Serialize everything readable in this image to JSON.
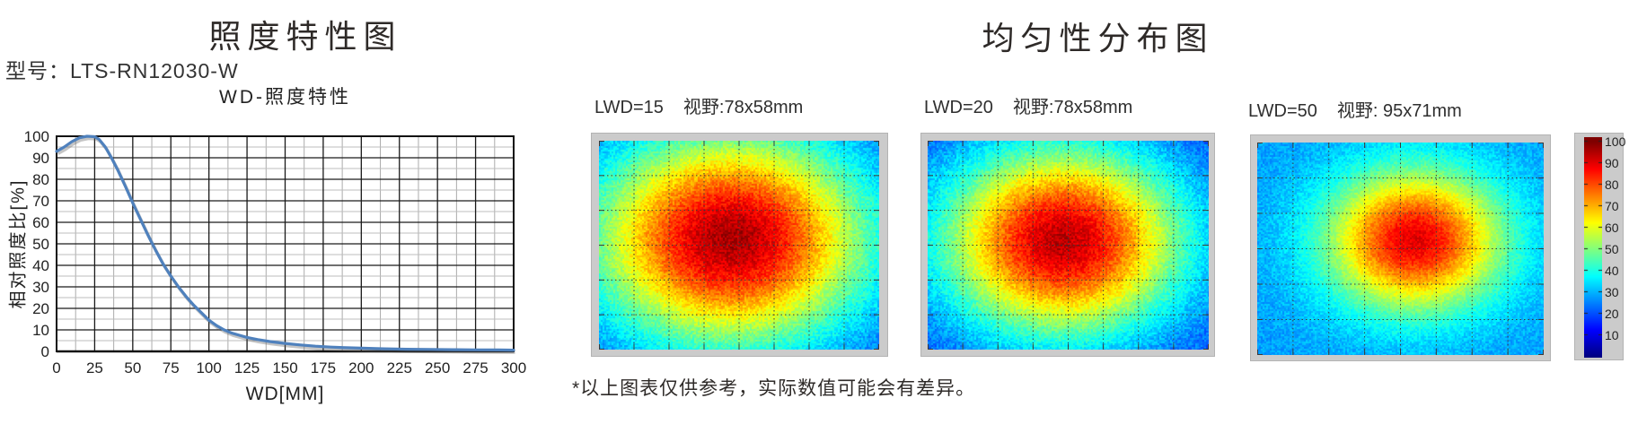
{
  "left": {
    "title": "照度特性图",
    "model": "型号：LTS-RN12030-W"
  },
  "right": {
    "title": "均匀性分布图",
    "footnote": "*以上图表仅供参考，实际数值可能会有差异。"
  },
  "chart_data": [
    {
      "type": "line",
      "title": "WD-照度特性",
      "xlabel": "WD[MM]",
      "ylabel": "相对照度比[%]",
      "xlim": [
        0,
        300
      ],
      "ylim": [
        0,
        100
      ],
      "x_ticks": [
        0,
        25,
        50,
        75,
        100,
        125,
        150,
        175,
        200,
        225,
        250,
        275,
        300
      ],
      "y_ticks": [
        0,
        10,
        20,
        30,
        40,
        50,
        60,
        70,
        80,
        90,
        100
      ],
      "x_major_step": 25,
      "x_minor_step": 12.5,
      "y_major_step": 10,
      "y_minor_step": 5,
      "grid": "on",
      "line_color": "#4f81bd",
      "series": [
        {
          "name": "相对照度比",
          "points": [
            [
              0,
              93
            ],
            [
              5,
              95
            ],
            [
              10,
              97.5
            ],
            [
              15,
              99.3
            ],
            [
              20,
              100
            ],
            [
              25,
              99.8
            ],
            [
              28,
              98.5
            ],
            [
              32,
              95
            ],
            [
              36,
              90
            ],
            [
              40,
              84.5
            ],
            [
              45,
              77
            ],
            [
              50,
              69
            ],
            [
              55,
              61.5
            ],
            [
              60,
              54
            ],
            [
              65,
              47
            ],
            [
              70,
              40.5
            ],
            [
              75,
              35
            ],
            [
              80,
              30
            ],
            [
              85,
              25.5
            ],
            [
              90,
              21.5
            ],
            [
              95,
              18
            ],
            [
              100,
              14.5
            ],
            [
              105,
              12
            ],
            [
              110,
              10
            ],
            [
              115,
              8.5
            ],
            [
              120,
              7.5
            ],
            [
              125,
              6.5
            ],
            [
              132,
              5.5
            ],
            [
              140,
              4.6
            ],
            [
              150,
              3.7
            ],
            [
              160,
              3
            ],
            [
              170,
              2.4
            ],
            [
              180,
              2
            ],
            [
              190,
              1.7
            ],
            [
              200,
              1.5
            ],
            [
              215,
              1.2
            ],
            [
              230,
              1
            ],
            [
              245,
              0.9
            ],
            [
              260,
              0.8
            ],
            [
              275,
              0.7
            ],
            [
              290,
              0.65
            ],
            [
              300,
              0.6
            ]
          ]
        }
      ]
    },
    {
      "type": "heatmap",
      "label": "LWD=15",
      "fov": "视野:78x58mm",
      "peak_center_value": 96,
      "corner_value": 27,
      "colormap": "jet",
      "model": {
        "cx": 0.47,
        "cy": 0.47,
        "sx": 0.34,
        "sy": 0.35,
        "base": 18,
        "peak": 96,
        "noise": 5
      },
      "grid": {
        "cols": 8,
        "rows": 6
      }
    },
    {
      "type": "heatmap",
      "label": "LWD=20",
      "fov": "视野:78x58mm",
      "peak_center_value": 94,
      "corner_value": 24,
      "colormap": "jet",
      "model": {
        "cx": 0.48,
        "cy": 0.48,
        "sx": 0.295,
        "sy": 0.31,
        "base": 18,
        "peak": 94,
        "noise": 5
      },
      "grid": {
        "cols": 8,
        "rows": 6
      }
    },
    {
      "type": "heatmap",
      "label": "LWD=50",
      "fov": "视野: 95x71mm",
      "peak_center_value": 90,
      "corner_value": 28,
      "colormap": "jet",
      "model": {
        "cx": 0.55,
        "cy": 0.46,
        "sx": 0.21,
        "sy": 0.225,
        "base": 28,
        "peak": 90,
        "noise": 4
      },
      "grid": {
        "cols": 8,
        "rows": 6
      }
    },
    {
      "type": "colorbar",
      "colormap": "jet",
      "range": [
        0,
        102
      ],
      "ticks": [
        100,
        90,
        80,
        70,
        60,
        50,
        40,
        30,
        20,
        10
      ]
    }
  ]
}
